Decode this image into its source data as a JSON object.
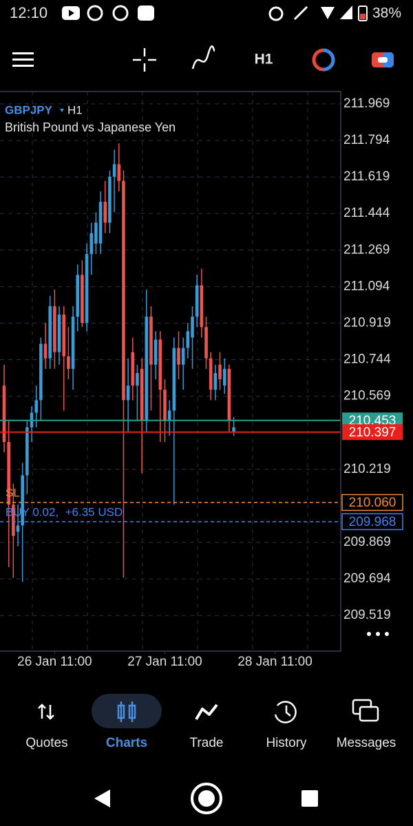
{
  "status_bar": {
    "time": "12:10",
    "battery": "38%"
  },
  "toolbar": {
    "timeframe": "H1"
  },
  "chart_data": {
    "type": "candlestick",
    "symbol": "GBPJPY",
    "timeframe": "H1",
    "description": "British Pound vs Japanese Yen",
    "up_color": "#3a9bd5",
    "down_color": "#ef5350",
    "open": [
      210.62,
      210.35,
      210.05,
      209.92,
      209.95,
      210.19,
      210.42,
      210.49,
      210.55,
      210.82,
      210.75,
      211.0,
      210.78,
      210.96,
      210.76,
      210.7,
      210.95,
      211.15,
      210.92,
      211.25,
      211.3,
      211.3,
      211.5,
      211.4,
      211.62,
      211.68,
      211.6,
      210.55,
      210.78,
      210.62,
      210.7,
      210.45,
      210.95,
      210.72,
      210.84,
      210.6,
      210.45,
      210.5,
      210.8,
      210.72,
      210.8,
      210.85,
      210.95,
      211.1,
      210.9,
      210.75,
      210.6,
      210.72,
      210.62,
      210.7,
      210.4
    ],
    "high": [
      210.72,
      210.45,
      210.15,
      210.05,
      210.25,
      210.45,
      210.52,
      210.62,
      210.85,
      210.92,
      211.05,
      211.08,
      211.0,
      211.0,
      210.9,
      211.0,
      211.2,
      211.22,
      211.3,
      211.4,
      211.45,
      211.55,
      211.6,
      211.65,
      211.75,
      211.78,
      211.65,
      210.75,
      210.85,
      210.72,
      210.75,
      211.08,
      211.0,
      210.88,
      210.88,
      210.65,
      210.55,
      210.85,
      210.88,
      210.85,
      210.92,
      211.0,
      211.15,
      211.18,
      210.95,
      210.78,
      210.72,
      210.78,
      210.75,
      210.72,
      210.47
    ],
    "low": [
      210.3,
      209.75,
      209.7,
      209.85,
      209.68,
      210.1,
      210.35,
      210.42,
      210.45,
      210.7,
      210.7,
      210.7,
      210.72,
      210.5,
      210.65,
      210.6,
      210.88,
      210.9,
      210.88,
      211.15,
      211.25,
      211.25,
      211.35,
      211.35,
      211.45,
      211.55,
      209.7,
      210.4,
      210.55,
      210.45,
      210.2,
      210.4,
      210.5,
      210.65,
      210.35,
      210.35,
      210.38,
      210.05,
      210.65,
      210.6,
      210.75,
      210.7,
      210.9,
      210.85,
      210.7,
      210.55,
      210.55,
      210.6,
      210.58,
      210.4,
      210.38
    ],
    "close": [
      210.35,
      210.05,
      209.9,
      209.95,
      210.19,
      210.42,
      210.49,
      210.55,
      210.82,
      210.75,
      211.0,
      210.78,
      210.96,
      210.76,
      210.7,
      210.95,
      211.15,
      210.92,
      211.25,
      211.35,
      211.4,
      211.5,
      211.4,
      211.62,
      211.68,
      211.6,
      210.55,
      210.62,
      210.62,
      210.68,
      210.45,
      210.95,
      210.72,
      210.84,
      210.6,
      210.45,
      210.5,
      210.8,
      210.72,
      210.8,
      210.88,
      210.95,
      211.1,
      210.9,
      210.75,
      210.6,
      210.68,
      210.65,
      210.7,
      210.45,
      210.42
    ],
    "xlim": [
      -0.9,
      73.3
    ],
    "xticks": [
      {
        "value": 11,
        "label": "26 Jan 11:00"
      },
      {
        "value": 35,
        "label": "27 Jan 11:00"
      },
      {
        "value": 59,
        "label": "28 Jan 11:00"
      }
    ],
    "ylim": [
      209.348,
      212.028
    ],
    "yticks": [
      211.969,
      211.794,
      211.619,
      211.444,
      211.269,
      211.094,
      210.919,
      210.744,
      210.569,
      210.219,
      209.869,
      209.694,
      209.519
    ],
    "grid": true,
    "price_lines": [
      {
        "value": 210.453,
        "value_label": "210.453",
        "color": "#2a9d8f",
        "style": "solid",
        "box": "filled"
      },
      {
        "value": 210.397,
        "value_label": "210.397",
        "color": "#e8201c",
        "style": "solid",
        "box": "filled"
      },
      {
        "name": "SL",
        "value": 210.06,
        "value_label": "210.060",
        "color": "#f08a3c",
        "style": "dashed",
        "box": "outline"
      },
      {
        "name": "BUY 0.02,  +6.35 USD",
        "value": 209.968,
        "value_label": "209.968",
        "color": "#4a7ff0",
        "style": "dashed",
        "box": "outline"
      }
    ]
  },
  "bottom_nav": {
    "items": [
      "Quotes",
      "Charts",
      "Trade",
      "History",
      "Messages"
    ]
  }
}
